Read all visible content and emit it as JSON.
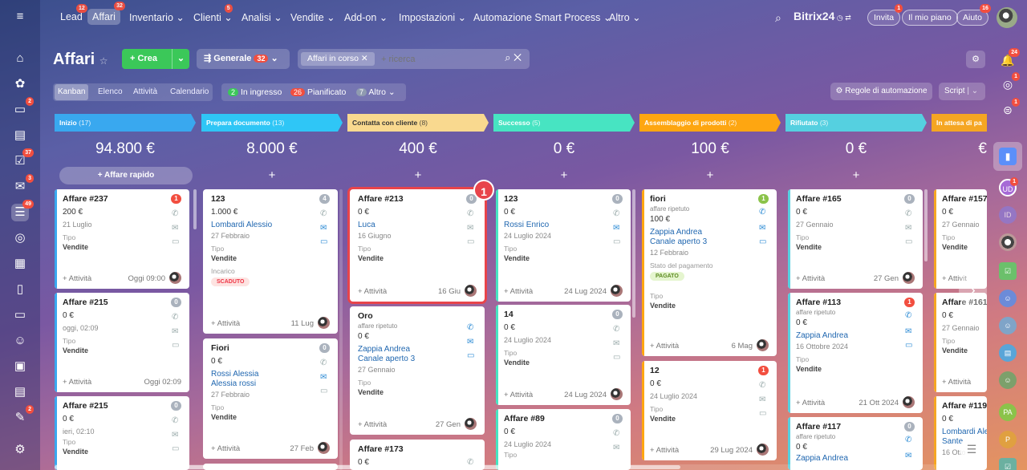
{
  "topnav": {
    "items": [
      {
        "label": "Lead",
        "badge": "12"
      },
      {
        "label": "Affari",
        "badge": "32"
      },
      {
        "label": "Inventario ⌄",
        "badge": ""
      },
      {
        "label": "Clienti ⌄",
        "badge": "5"
      },
      {
        "label": "Analisi ⌄",
        "badge": ""
      },
      {
        "label": "Vendite ⌄",
        "badge": ""
      },
      {
        "label": "Add-on ⌄",
        "badge": ""
      },
      {
        "label": "Impostazioni ⌄",
        "badge": ""
      },
      {
        "label": "Automazione Smart Process ⌄",
        "badge": ""
      },
      {
        "label": "Altro ⌄",
        "badge": ""
      }
    ],
    "brand": "Bitrix24",
    "invite": "Invita",
    "invite_badge": "1",
    "plan": "Il mio piano",
    "help": "Aiuto",
    "help_badge": "16"
  },
  "leftbar": {
    "badges": [
      "",
      "",
      "2",
      "37",
      "3",
      "49",
      "",
      "",
      "",
      "",
      "",
      "",
      "2",
      ""
    ]
  },
  "toolbar": {
    "title": "Affari",
    "add": "+ Crea",
    "general": "Generale",
    "general_count": "32",
    "filter_chip": "Affari in corso",
    "search_placeholder": "+ ricerca"
  },
  "views": [
    "Kanban",
    "Elenco",
    "Attività",
    "Calendario"
  ],
  "counters": [
    {
      "n": "2",
      "label": "In ingresso",
      "color": "#3bc859"
    },
    {
      "n": "26",
      "label": "Pianificato",
      "color": "#f24e3f"
    },
    {
      "n": "7",
      "label": "Altro",
      "color": "#8f9bb0"
    }
  ],
  "rules": "Regole di automazione",
  "script": "Script",
  "quick_add": "+ Affare rapido",
  "columns": [
    {
      "name": "Inizio",
      "count": "(17)",
      "sum": "94.800 €",
      "color": "#39a8ef"
    },
    {
      "name": "Prepara documento",
      "count": "(13)",
      "sum": "8.000 €",
      "color": "#2fc6f6"
    },
    {
      "name": "Contatta con cliente",
      "count": "(8)",
      "sum": "400 €",
      "color": "#f9d98f"
    },
    {
      "name": "Successo",
      "count": "(5)",
      "sum": "0 €",
      "color": "#47e4c2"
    },
    {
      "name": "Assemblaggio di prodotti",
      "count": "(2)",
      "sum": "100 €",
      "color": "#fea611"
    },
    {
      "name": "Rifiutato",
      "count": "(3)",
      "sum": "0 €",
      "color": "#55d0e0"
    },
    {
      "name": "In attesa di pa",
      "count": "",
      "sum": "€",
      "color": "#f5a623"
    }
  ],
  "cards": {
    "c1": {
      "title": "Affare #237",
      "amount": "200 €",
      "date": "21 Luglio",
      "type_label": "Tipo",
      "type": "Vendite",
      "act": "+ Attività",
      "foot_date": "Oggi 09:00",
      "badge": "1"
    },
    "c2": {
      "title": "Affare #215",
      "amount": "0 €",
      "date": "oggi, 02:09",
      "type_label": "Tipo",
      "type": "Vendite",
      "act": "+ Attività",
      "foot_date": "Oggi 02:09",
      "badge": "0"
    },
    "c3": {
      "title": "Affare #215",
      "amount": "0 €",
      "date": "ieri, 02:10",
      "type_label": "Tipo",
      "type": "Vendite",
      "badge": "0"
    },
    "c4": {
      "title": "123",
      "amount": "1.000 €",
      "contact": "Lombardi Alessio",
      "date": "27 Febbraio",
      "type_label": "Tipo",
      "type": "Vendite",
      "inc": "Incarico",
      "tag": "SCADUTO",
      "act": "+ Attività",
      "foot_date": "11 Lug",
      "badge": "4"
    },
    "c5": {
      "title": "Fiori",
      "amount": "0 €",
      "contact": "Rossi Alessia",
      "contact2": "Alessia rossi",
      "date": "27 Febbraio",
      "type_label": "Tipo",
      "type": "Vendite",
      "act": "+ Attività",
      "foot_date": "27 Feb",
      "badge": "0"
    },
    "c6": {
      "title": "Affare #213",
      "amount": "0 €",
      "contact": "Luca",
      "date": "16 Giugno",
      "type_label": "Tipo",
      "type": "Vendite",
      "act": "+ Attività",
      "foot_date": "16 Giu",
      "badge": "0",
      "marker": "1"
    },
    "c7": {
      "title": "Oro",
      "sub": "affare ripetuto",
      "amount": "0 €",
      "contact": "Zappia Andrea",
      "contact2": "Canale aperto 3",
      "date": "27 Gennaio",
      "type_label": "Tipo",
      "type": "Vendite",
      "act": "+ Attività",
      "foot_date": "27 Gen"
    },
    "c8": {
      "title": "Affare #173",
      "amount": "0 €"
    },
    "c9": {
      "title": "123",
      "amount": "0 €",
      "contact": "Rossi Enrico",
      "date": "24 Luglio 2024",
      "type_label": "Tipo",
      "type": "Vendite",
      "act": "+ Attività",
      "foot_date": "24 Lug 2024",
      "badge": "0"
    },
    "c10": {
      "title": "14",
      "amount": "0 €",
      "date": "24 Luglio 2024",
      "type_label": "Tipo",
      "type": "Vendite",
      "act": "+ Attività",
      "foot_date": "24 Lug 2024",
      "badge": "0"
    },
    "c11": {
      "title": "Affare #89",
      "amount": "0 €",
      "date": "24 Luglio 2024",
      "type_label": "Tipo",
      "badge": "0"
    },
    "c12": {
      "title": "fiori",
      "sub": "affare ripetuto",
      "amount": "100 €",
      "contact": "Zappia Andrea",
      "contact2": "Canale aperto 3",
      "date": "12 Febbraio",
      "pay_label": "Stato del pagamento",
      "tag": "PAGATO",
      "type_label": "Tipo",
      "type": "Vendite",
      "act": "+ Attività",
      "foot_date": "6 Mag",
      "badge": "1"
    },
    "c13": {
      "title": "12",
      "amount": "0 €",
      "date": "24 Luglio 2024",
      "type_label": "Tipo",
      "type": "Vendite",
      "act": "+ Attività",
      "foot_date": "29 Lug 2024",
      "badge": "1"
    },
    "c14": {
      "title": "Affare #165",
      "amount": "0 €",
      "date": "27 Gennaio",
      "type_label": "Tipo",
      "type": "Vendite",
      "act": "+ Attività",
      "foot_date": "27 Gen",
      "badge": "0"
    },
    "c15": {
      "title": "Affare #113",
      "sub": "affare ripetuto",
      "amount": "0 €",
      "contact": "Zappia Andrea",
      "date": "16 Ottobre 2024",
      "type_label": "Tipo",
      "type": "Vendite",
      "act": "+ Attività",
      "foot_date": "21 Ott 2024",
      "badge": "1"
    },
    "c16": {
      "title": "Affare #117",
      "sub": "affare ripetuto",
      "amount": "0 €",
      "contact": "Zappia Andrea",
      "badge": "0"
    },
    "c17": {
      "title": "Affare #157",
      "amount": "0 €",
      "date": "27 Gennaio",
      "type_label": "Tipo",
      "type": "Vendite",
      "act": "+ Attivit"
    },
    "c18": {
      "title": "Affare #161",
      "amount": "0 €",
      "date": "27 Gennaio",
      "type_label": "Tipo",
      "type": "Vendite",
      "act": "+ Attività"
    },
    "c19": {
      "title": "Affare #119",
      "amount": "0 €",
      "contact": "Lombardi Ale",
      "contact2": "Sante",
      "date": "16 Otto"
    }
  },
  "rightbar": {
    "badges": [
      "24",
      "1",
      "1",
      "",
      "1"
    ],
    "avatars": [
      "UD",
      "ID",
      "",
      "",
      "",
      "",
      "",
      "",
      "PA",
      "P"
    ]
  }
}
